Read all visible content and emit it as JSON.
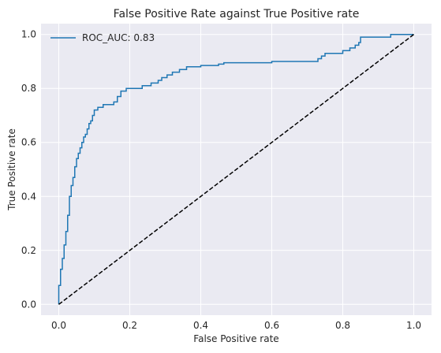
{
  "chart_data": {
    "type": "line",
    "title": "False Positive Rate against True Positive rate",
    "xlabel": "False Positive rate",
    "ylabel": "True Positive rate",
    "xlim": [
      -0.05,
      1.05
    ],
    "ylim": [
      -0.04,
      1.04
    ],
    "xticks": [
      0.0,
      0.2,
      0.4,
      0.6,
      0.8,
      1.0
    ],
    "yticks": [
      0.0,
      0.2,
      0.4,
      0.6,
      0.8,
      1.0
    ],
    "xtick_labels": [
      "0.0",
      "0.2",
      "0.4",
      "0.6",
      "0.8",
      "1.0"
    ],
    "ytick_labels": [
      "0.0",
      "0.2",
      "0.4",
      "0.6",
      "0.8",
      "1.0"
    ],
    "grid": true,
    "legend_position": "top-left",
    "series": [
      {
        "name": "ROC_AUC: 0.83",
        "color": "#1f77b4",
        "style": "solid",
        "x": [
          0.0,
          0.0,
          0.005,
          0.005,
          0.01,
          0.01,
          0.015,
          0.015,
          0.02,
          0.02,
          0.025,
          0.025,
          0.03,
          0.03,
          0.035,
          0.035,
          0.04,
          0.04,
          0.045,
          0.045,
          0.05,
          0.05,
          0.055,
          0.055,
          0.06,
          0.06,
          0.065,
          0.065,
          0.07,
          0.07,
          0.075,
          0.075,
          0.08,
          0.08,
          0.085,
          0.085,
          0.09,
          0.09,
          0.095,
          0.095,
          0.1,
          0.1,
          0.11,
          0.11,
          0.125,
          0.125,
          0.155,
          0.155,
          0.165,
          0.165,
          0.175,
          0.175,
          0.19,
          0.19,
          0.235,
          0.235,
          0.26,
          0.26,
          0.28,
          0.28,
          0.29,
          0.29,
          0.305,
          0.305,
          0.32,
          0.32,
          0.34,
          0.34,
          0.36,
          0.36,
          0.4,
          0.4,
          0.45,
          0.45,
          0.465,
          0.465,
          0.6,
          0.6,
          0.73,
          0.73,
          0.74,
          0.74,
          0.75,
          0.75,
          0.8,
          0.8,
          0.82,
          0.82,
          0.835,
          0.835,
          0.845,
          0.845,
          0.85,
          0.85,
          0.935,
          0.935,
          1.0
        ],
        "y": [
          0.0,
          0.07,
          0.07,
          0.13,
          0.13,
          0.17,
          0.17,
          0.22,
          0.22,
          0.27,
          0.27,
          0.33,
          0.33,
          0.4,
          0.4,
          0.44,
          0.44,
          0.47,
          0.47,
          0.51,
          0.51,
          0.54,
          0.54,
          0.56,
          0.56,
          0.58,
          0.58,
          0.6,
          0.6,
          0.62,
          0.62,
          0.63,
          0.63,
          0.65,
          0.65,
          0.67,
          0.67,
          0.68,
          0.68,
          0.7,
          0.7,
          0.72,
          0.72,
          0.73,
          0.73,
          0.74,
          0.74,
          0.75,
          0.75,
          0.77,
          0.77,
          0.79,
          0.79,
          0.8,
          0.8,
          0.81,
          0.81,
          0.82,
          0.82,
          0.83,
          0.83,
          0.84,
          0.84,
          0.85,
          0.85,
          0.86,
          0.86,
          0.87,
          0.87,
          0.88,
          0.88,
          0.885,
          0.885,
          0.89,
          0.89,
          0.895,
          0.895,
          0.9,
          0.9,
          0.91,
          0.91,
          0.92,
          0.92,
          0.93,
          0.93,
          0.94,
          0.94,
          0.95,
          0.95,
          0.96,
          0.96,
          0.97,
          0.97,
          0.99,
          0.99,
          1.0,
          1.0
        ]
      },
      {
        "name": "",
        "color": "#000000",
        "style": "dashed",
        "x": [
          0.0,
          1.0
        ],
        "y": [
          0.0,
          1.0
        ]
      }
    ],
    "background": "#eaeaf2",
    "grid_color": "#ffffff"
  }
}
